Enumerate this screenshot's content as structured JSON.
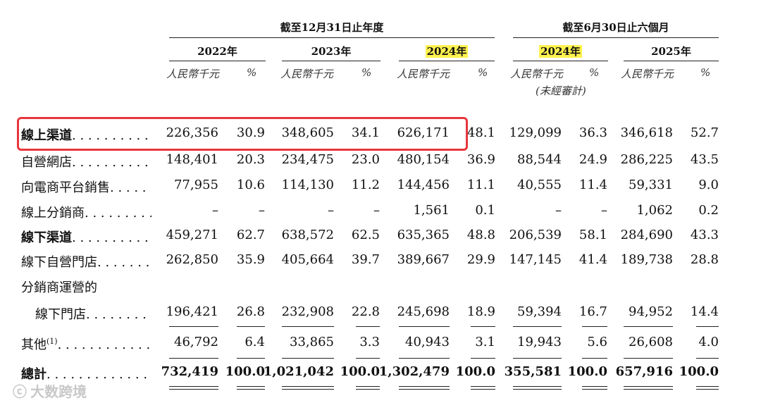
{
  "header": {
    "group_fy": "截至12月31日止年度",
    "group_6m": "截至6月30日止六個月",
    "years": [
      "2022年",
      "2023年",
      "2024年",
      "2024年",
      "2025年"
    ],
    "unit_rmb": "人民幣千元",
    "unit_pct": "%",
    "unaudited": "(未經審計)"
  },
  "rows": [
    {
      "label": "線上渠道",
      "values": [
        "226,356",
        "30.9",
        "348,605",
        "34.1",
        "626,171",
        "48.1",
        "129,099",
        "36.3",
        "346,618",
        "52.7"
      ]
    },
    {
      "label": "自營網店",
      "values": [
        "148,401",
        "20.3",
        "234,475",
        "23.0",
        "480,154",
        "36.9",
        "88,544",
        "24.9",
        "286,225",
        "43.5"
      ]
    },
    {
      "label": "向電商平台銷售",
      "values": [
        "77,955",
        "10.6",
        "114,130",
        "11.2",
        "144,456",
        "11.1",
        "40,555",
        "11.4",
        "59,331",
        "9.0"
      ]
    },
    {
      "label": "線上分銷商",
      "values": [
        "–",
        "–",
        "–",
        "–",
        "1,561",
        "0.1",
        "–",
        "–",
        "1,062",
        "0.2"
      ]
    },
    {
      "label": "線下渠道",
      "values": [
        "459,271",
        "62.7",
        "638,572",
        "62.5",
        "635,365",
        "48.8",
        "206,539",
        "58.1",
        "284,690",
        "43.3"
      ]
    },
    {
      "label": "線下自營門店",
      "values": [
        "262,850",
        "35.9",
        "405,664",
        "39.7",
        "389,667",
        "29.9",
        "147,145",
        "41.4",
        "189,738",
        "28.8"
      ]
    },
    {
      "label": "分銷商運營的",
      "values": []
    },
    {
      "label": "線下門店",
      "values": [
        "196,421",
        "26.8",
        "232,908",
        "22.8",
        "245,698",
        "18.9",
        "59,394",
        "16.7",
        "94,952",
        "14.4"
      ]
    },
    {
      "label": "其他",
      "sup": "(1)",
      "values": [
        "46,792",
        "6.4",
        "33,865",
        "3.3",
        "40,943",
        "3.1",
        "19,943",
        "5.6",
        "26,608",
        "4.0"
      ]
    },
    {
      "label": "總計",
      "values": [
        "732,419",
        "100.0",
        "1,021,042",
        "100.0",
        "1,302,479",
        "100.0",
        "355,581",
        "100.0",
        "657,916",
        "100.0"
      ]
    }
  ],
  "leaders": ". . . . . . . . . . . . . . . .",
  "watermark": "大数跨境",
  "highlight_color": "#fff24d",
  "box_color": "#e8363c"
}
